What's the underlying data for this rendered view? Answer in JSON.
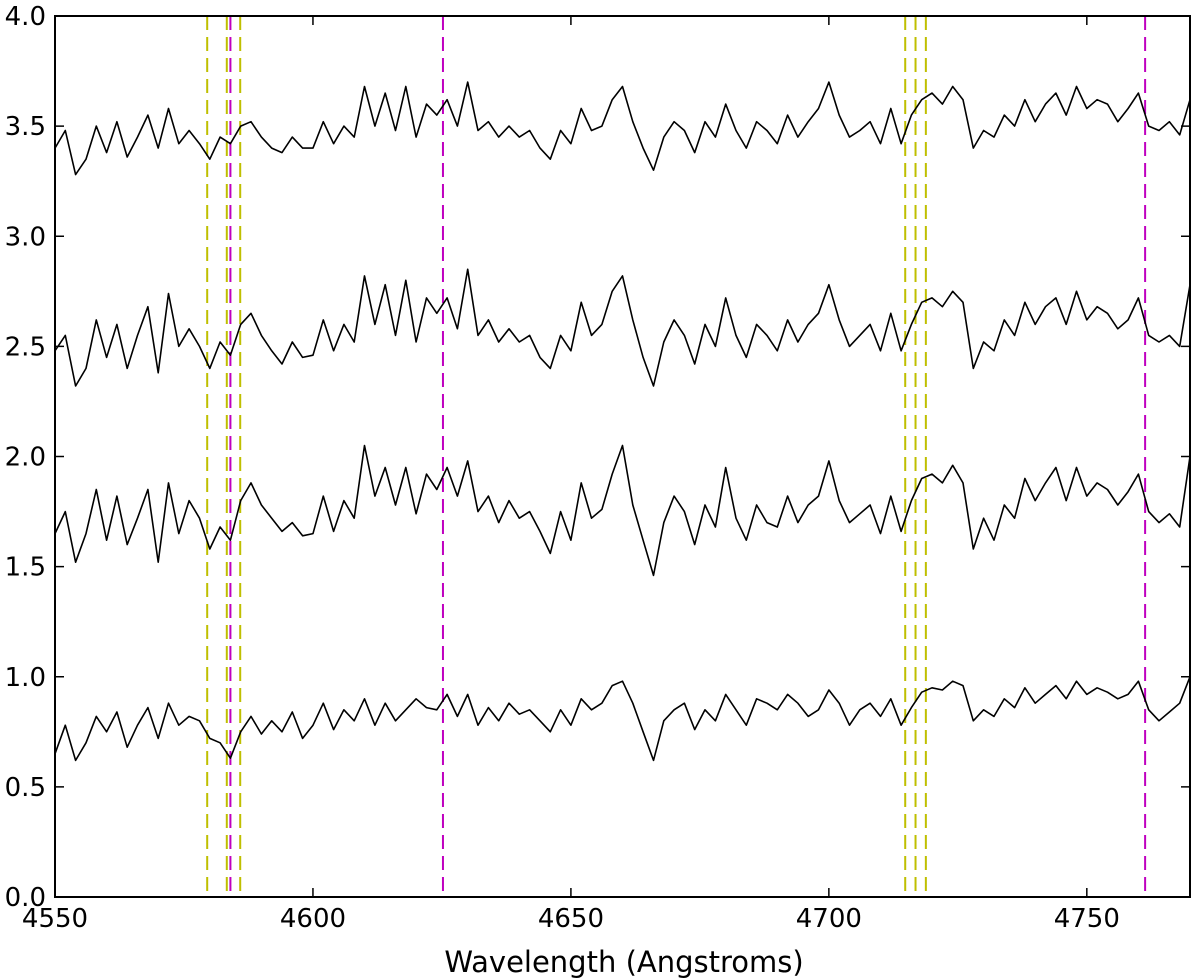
{
  "chart_data": {
    "type": "line",
    "title": "",
    "xlabel": "Wavelength (Angstroms)",
    "ylabel": "",
    "xlim": [
      4550,
      4770
    ],
    "ylim": [
      0.0,
      4.0
    ],
    "xticks": [
      4550,
      4600,
      4650,
      4700,
      4750
    ],
    "yticks": [
      0.0,
      0.5,
      1.0,
      1.5,
      2.0,
      2.5,
      3.0,
      3.5,
      4.0
    ],
    "xtick_labels": [
      "4550",
      "4600",
      "4650",
      "4700",
      "4750"
    ],
    "ytick_labels": [
      "0.0",
      "0.5",
      "1.0",
      "1.5",
      "2.0",
      "2.5",
      "3.0",
      "3.5",
      "4.0"
    ],
    "grid": false,
    "line_color": "#000000",
    "vlines": [
      {
        "x": 4579.5,
        "color": "#bfbf00"
      },
      {
        "x": 4583.3,
        "color": "#bfbf00"
      },
      {
        "x": 4584.0,
        "color": "#bf00bf"
      },
      {
        "x": 4585.9,
        "color": "#bfbf00"
      },
      {
        "x": 4625.2,
        "color": "#bf00bf"
      },
      {
        "x": 4714.8,
        "color": "#bfbf00"
      },
      {
        "x": 4716.8,
        "color": "#bfbf00"
      },
      {
        "x": 4718.8,
        "color": "#bfbf00"
      },
      {
        "x": 4761.3,
        "color": "#bf00bf"
      }
    ],
    "series": [
      {
        "x": [
          4550,
          4552,
          4554,
          4556,
          4558,
          4560,
          4562,
          4564,
          4566,
          4568,
          4570,
          4572,
          4574,
          4576,
          4578,
          4580,
          4582,
          4584,
          4586,
          4588,
          4590,
          4592,
          4594,
          4596,
          4598,
          4600,
          4602,
          4604,
          4606,
          4608,
          4610,
          4612,
          4614,
          4616,
          4618,
          4620,
          4622,
          4624,
          4626,
          4628,
          4630,
          4632,
          4634,
          4636,
          4638,
          4640,
          4642,
          4644,
          4646,
          4648,
          4650,
          4652,
          4654,
          4656,
          4658,
          4660,
          4662,
          4664,
          4666,
          4668,
          4670,
          4672,
          4674,
          4676,
          4678,
          4680,
          4682,
          4684,
          4686,
          4688,
          4690,
          4692,
          4694,
          4696,
          4698,
          4700,
          4702,
          4704,
          4706,
          4708,
          4710,
          4712,
          4714,
          4716,
          4718,
          4720,
          4722,
          4724,
          4726,
          4728,
          4730,
          4732,
          4734,
          4736,
          4738,
          4740,
          4742,
          4744,
          4746,
          4748,
          4750,
          4752,
          4754,
          4756,
          4758,
          4760,
          4762,
          4764,
          4766,
          4768,
          4770
        ],
        "values": [
          0.65,
          0.78,
          0.62,
          0.7,
          0.82,
          0.75,
          0.84,
          0.68,
          0.78,
          0.86,
          0.72,
          0.88,
          0.78,
          0.82,
          0.8,
          0.72,
          0.7,
          0.63,
          0.75,
          0.82,
          0.74,
          0.8,
          0.75,
          0.84,
          0.72,
          0.78,
          0.88,
          0.76,
          0.85,
          0.8,
          0.9,
          0.78,
          0.88,
          0.8,
          0.85,
          0.9,
          0.86,
          0.85,
          0.92,
          0.82,
          0.92,
          0.78,
          0.86,
          0.8,
          0.88,
          0.83,
          0.85,
          0.8,
          0.75,
          0.85,
          0.78,
          0.9,
          0.85,
          0.88,
          0.96,
          0.98,
          0.88,
          0.75,
          0.62,
          0.8,
          0.85,
          0.88,
          0.76,
          0.85,
          0.8,
          0.92,
          0.85,
          0.78,
          0.9,
          0.88,
          0.85,
          0.92,
          0.88,
          0.82,
          0.85,
          0.94,
          0.88,
          0.78,
          0.85,
          0.88,
          0.82,
          0.9,
          0.78,
          0.86,
          0.93,
          0.95,
          0.94,
          0.98,
          0.96,
          0.8,
          0.85,
          0.82,
          0.9,
          0.86,
          0.95,
          0.88,
          0.92,
          0.96,
          0.9,
          0.98,
          0.92,
          0.95,
          0.93,
          0.9,
          0.92,
          0.98,
          0.85,
          0.8,
          0.84,
          0.88,
          1.0
        ]
      },
      {
        "x": [
          4550,
          4552,
          4554,
          4556,
          4558,
          4560,
          4562,
          4564,
          4566,
          4568,
          4570,
          4572,
          4574,
          4576,
          4578,
          4580,
          4582,
          4584,
          4586,
          4588,
          4590,
          4592,
          4594,
          4596,
          4598,
          4600,
          4602,
          4604,
          4606,
          4608,
          4610,
          4612,
          4614,
          4616,
          4618,
          4620,
          4622,
          4624,
          4626,
          4628,
          4630,
          4632,
          4634,
          4636,
          4638,
          4640,
          4642,
          4644,
          4646,
          4648,
          4650,
          4652,
          4654,
          4656,
          4658,
          4660,
          4662,
          4664,
          4666,
          4668,
          4670,
          4672,
          4674,
          4676,
          4678,
          4680,
          4682,
          4684,
          4686,
          4688,
          4690,
          4692,
          4694,
          4696,
          4698,
          4700,
          4702,
          4704,
          4706,
          4708,
          4710,
          4712,
          4714,
          4716,
          4718,
          4720,
          4722,
          4724,
          4726,
          4728,
          4730,
          4732,
          4734,
          4736,
          4738,
          4740,
          4742,
          4744,
          4746,
          4748,
          4750,
          4752,
          4754,
          4756,
          4758,
          4760,
          4762,
          4764,
          4766,
          4768,
          4770
        ],
        "values": [
          1.65,
          1.75,
          1.52,
          1.65,
          1.85,
          1.62,
          1.82,
          1.6,
          1.72,
          1.85,
          1.52,
          1.88,
          1.65,
          1.8,
          1.72,
          1.58,
          1.68,
          1.62,
          1.8,
          1.88,
          1.78,
          1.72,
          1.66,
          1.7,
          1.64,
          1.65,
          1.82,
          1.66,
          1.8,
          1.72,
          2.05,
          1.82,
          1.95,
          1.78,
          1.95,
          1.74,
          1.92,
          1.85,
          1.95,
          1.82,
          1.98,
          1.75,
          1.82,
          1.7,
          1.8,
          1.72,
          1.75,
          1.66,
          1.56,
          1.75,
          1.62,
          1.88,
          1.72,
          1.76,
          1.92,
          2.05,
          1.78,
          1.62,
          1.46,
          1.7,
          1.82,
          1.75,
          1.6,
          1.78,
          1.68,
          1.95,
          1.72,
          1.62,
          1.78,
          1.7,
          1.68,
          1.82,
          1.7,
          1.78,
          1.82,
          1.98,
          1.8,
          1.7,
          1.74,
          1.78,
          1.65,
          1.82,
          1.66,
          1.8,
          1.9,
          1.92,
          1.88,
          1.96,
          1.88,
          1.58,
          1.72,
          1.62,
          1.78,
          1.72,
          1.9,
          1.8,
          1.88,
          1.95,
          1.8,
          1.95,
          1.82,
          1.88,
          1.85,
          1.78,
          1.84,
          1.92,
          1.75,
          1.7,
          1.74,
          1.68,
          2.0
        ]
      },
      {
        "x": [
          4550,
          4552,
          4554,
          4556,
          4558,
          4560,
          4562,
          4564,
          4566,
          4568,
          4570,
          4572,
          4574,
          4576,
          4578,
          4580,
          4582,
          4584,
          4586,
          4588,
          4590,
          4592,
          4594,
          4596,
          4598,
          4600,
          4602,
          4604,
          4606,
          4608,
          4610,
          4612,
          4614,
          4616,
          4618,
          4620,
          4622,
          4624,
          4626,
          4628,
          4630,
          4632,
          4634,
          4636,
          4638,
          4640,
          4642,
          4644,
          4646,
          4648,
          4650,
          4652,
          4654,
          4656,
          4658,
          4660,
          4662,
          4664,
          4666,
          4668,
          4670,
          4672,
          4674,
          4676,
          4678,
          4680,
          4682,
          4684,
          4686,
          4688,
          4690,
          4692,
          4694,
          4696,
          4698,
          4700,
          4702,
          4704,
          4706,
          4708,
          4710,
          4712,
          4714,
          4716,
          4718,
          4720,
          4722,
          4724,
          4726,
          4728,
          4730,
          4732,
          4734,
          4736,
          4738,
          4740,
          4742,
          4744,
          4746,
          4748,
          4750,
          4752,
          4754,
          4756,
          4758,
          4760,
          4762,
          4764,
          4766,
          4768,
          4770
        ],
        "values": [
          2.48,
          2.55,
          2.32,
          2.4,
          2.62,
          2.45,
          2.6,
          2.4,
          2.55,
          2.68,
          2.38,
          2.74,
          2.5,
          2.58,
          2.5,
          2.4,
          2.52,
          2.46,
          2.6,
          2.65,
          2.55,
          2.48,
          2.42,
          2.52,
          2.45,
          2.46,
          2.62,
          2.48,
          2.6,
          2.52,
          2.82,
          2.6,
          2.78,
          2.55,
          2.8,
          2.52,
          2.72,
          2.65,
          2.72,
          2.58,
          2.85,
          2.55,
          2.62,
          2.52,
          2.58,
          2.52,
          2.55,
          2.45,
          2.4,
          2.55,
          2.48,
          2.7,
          2.55,
          2.6,
          2.75,
          2.82,
          2.62,
          2.45,
          2.32,
          2.52,
          2.62,
          2.55,
          2.42,
          2.6,
          2.5,
          2.72,
          2.55,
          2.45,
          2.6,
          2.55,
          2.48,
          2.62,
          2.52,
          2.6,
          2.65,
          2.78,
          2.62,
          2.5,
          2.55,
          2.6,
          2.48,
          2.65,
          2.48,
          2.6,
          2.7,
          2.72,
          2.68,
          2.75,
          2.7,
          2.4,
          2.52,
          2.48,
          2.62,
          2.55,
          2.7,
          2.6,
          2.68,
          2.72,
          2.6,
          2.75,
          2.62,
          2.68,
          2.65,
          2.58,
          2.62,
          2.72,
          2.55,
          2.52,
          2.55,
          2.5,
          2.78
        ]
      },
      {
        "x": [
          4550,
          4552,
          4554,
          4556,
          4558,
          4560,
          4562,
          4564,
          4566,
          4568,
          4570,
          4572,
          4574,
          4576,
          4578,
          4580,
          4582,
          4584,
          4586,
          4588,
          4590,
          4592,
          4594,
          4596,
          4598,
          4600,
          4602,
          4604,
          4606,
          4608,
          4610,
          4612,
          4614,
          4616,
          4618,
          4620,
          4622,
          4624,
          4626,
          4628,
          4630,
          4632,
          4634,
          4636,
          4638,
          4640,
          4642,
          4644,
          4646,
          4648,
          4650,
          4652,
          4654,
          4656,
          4658,
          4660,
          4662,
          4664,
          4666,
          4668,
          4670,
          4672,
          4674,
          4676,
          4678,
          4680,
          4682,
          4684,
          4686,
          4688,
          4690,
          4692,
          4694,
          4696,
          4698,
          4700,
          4702,
          4704,
          4706,
          4708,
          4710,
          4712,
          4714,
          4716,
          4718,
          4720,
          4722,
          4724,
          4726,
          4728,
          4730,
          4732,
          4734,
          4736,
          4738,
          4740,
          4742,
          4744,
          4746,
          4748,
          4750,
          4752,
          4754,
          4756,
          4758,
          4760,
          4762,
          4764,
          4766,
          4768,
          4770
        ],
        "values": [
          3.4,
          3.48,
          3.28,
          3.35,
          3.5,
          3.38,
          3.52,
          3.36,
          3.45,
          3.55,
          3.4,
          3.58,
          3.42,
          3.48,
          3.42,
          3.35,
          3.45,
          3.42,
          3.5,
          3.52,
          3.45,
          3.4,
          3.38,
          3.45,
          3.4,
          3.4,
          3.52,
          3.42,
          3.5,
          3.45,
          3.68,
          3.5,
          3.65,
          3.48,
          3.68,
          3.45,
          3.6,
          3.55,
          3.62,
          3.5,
          3.7,
          3.48,
          3.52,
          3.45,
          3.5,
          3.45,
          3.48,
          3.4,
          3.35,
          3.48,
          3.42,
          3.58,
          3.48,
          3.5,
          3.62,
          3.68,
          3.52,
          3.4,
          3.3,
          3.45,
          3.52,
          3.48,
          3.38,
          3.52,
          3.45,
          3.6,
          3.48,
          3.4,
          3.52,
          3.48,
          3.42,
          3.55,
          3.45,
          3.52,
          3.58,
          3.7,
          3.55,
          3.45,
          3.48,
          3.52,
          3.42,
          3.58,
          3.42,
          3.55,
          3.62,
          3.65,
          3.6,
          3.68,
          3.62,
          3.4,
          3.48,
          3.45,
          3.55,
          3.5,
          3.62,
          3.52,
          3.6,
          3.65,
          3.55,
          3.68,
          3.58,
          3.62,
          3.6,
          3.52,
          3.58,
          3.65,
          3.5,
          3.48,
          3.52,
          3.46,
          3.62
        ]
      }
    ]
  }
}
